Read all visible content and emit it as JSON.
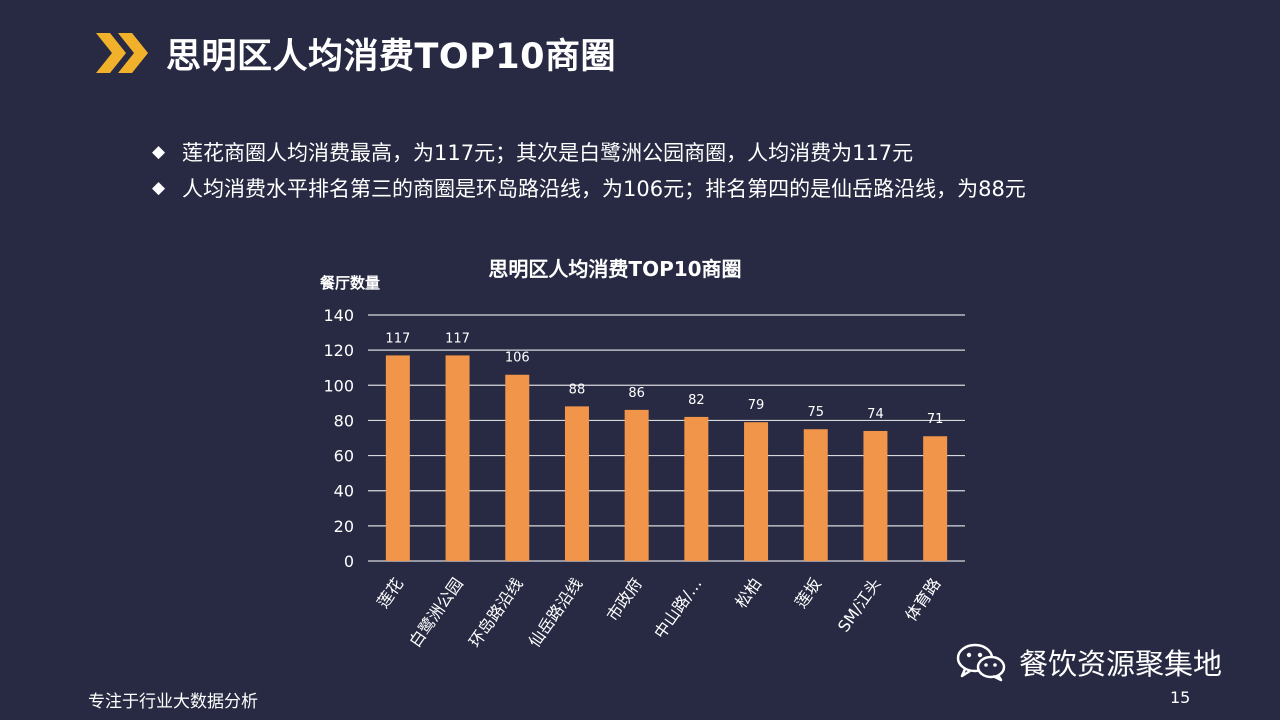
{
  "header": {
    "title": "思明区人均消费TOP10商圈",
    "accent_color": "#f2b12b"
  },
  "bullets": [
    {
      "text": "莲花商圈人均消费最高，为117元；其次是白鹭洲公园商圈，人均消费为117元"
    },
    {
      "text": "人均消费水平排名第三的商圈是环岛路沿线，为106元；排名第四的是仙岳路沿线，为88元"
    }
  ],
  "chart_data": {
    "type": "bar",
    "title": "思明区人均消费TOP10商圈",
    "ylabel": "餐厅数量",
    "xlabel": "",
    "categories": [
      "莲花",
      "白鹭洲公园",
      "环岛路沿线",
      "仙岳路沿线",
      "市政府",
      "中山路/…",
      "松柏",
      "莲坂",
      "SM/江头",
      "体育路"
    ],
    "values": [
      117,
      117,
      106,
      88,
      86,
      82,
      79,
      75,
      74,
      71
    ],
    "ylim": [
      0,
      140
    ],
    "yticks": [
      0,
      20,
      40,
      60,
      80,
      100,
      120,
      140
    ],
    "grid": true,
    "data_labels": true,
    "bar_color": "#f0954a"
  },
  "footer": {
    "left_text": "专注于行业大数据分析",
    "page_number": "15",
    "watermark_text": "餐饮资源聚集地",
    "watermark_icon": "wechat-icon"
  }
}
